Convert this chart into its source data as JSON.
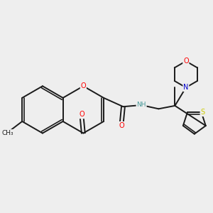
{
  "bg_color": "#eeeeee",
  "bond_color": "#1a1a1a",
  "bond_width": 1.4,
  "atom_colors": {
    "O": "#ff0000",
    "N": "#0000cc",
    "S": "#cccc00",
    "C": "#1a1a1a",
    "H": "#4a9a9a"
  },
  "font_size": 7.0
}
